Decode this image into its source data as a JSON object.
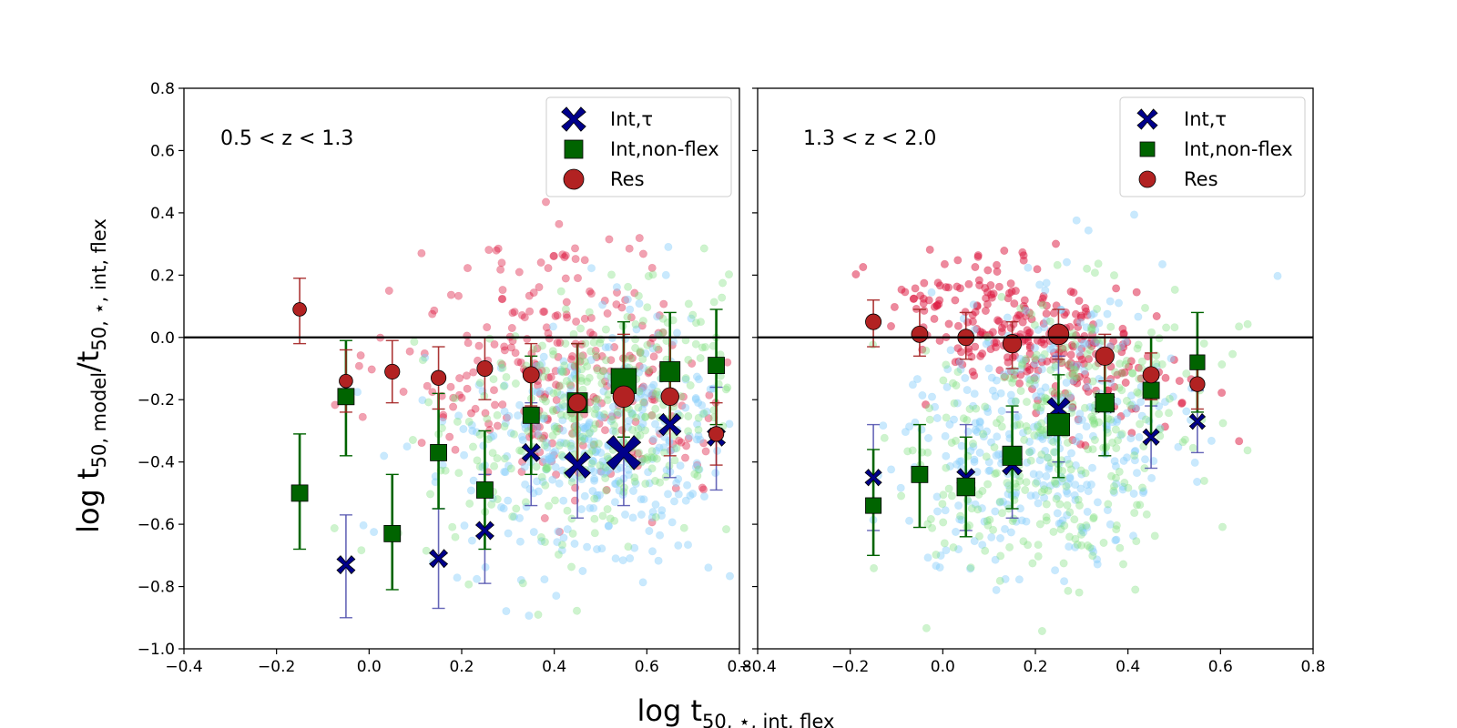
{
  "figure": {
    "ylabel": "log t50, model/t50, ⋆, int, flex",
    "xlabel": "log t50, ⋆, int, flex",
    "ylabel_parts": {
      "base": "log t",
      "sub1": "50, model",
      "slash": "/t",
      "sub2": "50, ⋆, int, flex"
    },
    "xlabel_parts": {
      "base": "log t",
      "sub": "50, ⋆, int, flex"
    }
  },
  "colors": {
    "tau_face": "#00008b",
    "tau_err": "#4b4bab",
    "nonflex_face": "#006400",
    "nonflex_err": "#006400",
    "res_face": "#b22222",
    "res_err": "#a31f1f",
    "scatter_red": "#dc143c",
    "scatter_blue": "#87cefa",
    "scatter_green": "#7ee07e"
  },
  "chart_data": [
    {
      "type": "scatter",
      "panel": "left",
      "annotation": "0.5 < z < 1.3",
      "xlim": [
        -0.4,
        0.8
      ],
      "ylim": [
        -1.0,
        0.8
      ],
      "xticks": [
        "−0.4",
        "−0.2",
        "0.0",
        "0.2",
        "0.4",
        "0.6",
        "0.8"
      ],
      "yticks": [
        "−1.0",
        "−0.8",
        "−0.6",
        "−0.4",
        "−0.2",
        "0.0",
        "0.2",
        "0.4",
        "0.6",
        "0.8"
      ],
      "hline": 0.0,
      "legend": {
        "placement": "top-right",
        "entries": [
          "Int,τ",
          "Int,non-flex",
          "Res"
        ]
      },
      "series": [
        {
          "name": "Int,τ",
          "marker": "X",
          "points": [
            {
              "x": -0.05,
              "y": -0.73,
              "lo": -0.9,
              "hi": -0.57,
              "w": 1
            },
            {
              "x": 0.15,
              "y": -0.71,
              "lo": -0.87,
              "hi": -0.55,
              "w": 1
            },
            {
              "x": 0.25,
              "y": -0.62,
              "lo": -0.79,
              "hi": -0.44,
              "w": 1
            },
            {
              "x": 0.35,
              "y": -0.37,
              "lo": -0.54,
              "hi": -0.21,
              "w": 1
            },
            {
              "x": 0.45,
              "y": -0.41,
              "lo": -0.58,
              "hi": -0.24,
              "w": 2
            },
            {
              "x": 0.55,
              "y": -0.37,
              "lo": -0.54,
              "hi": -0.2,
              "w": 3
            },
            {
              "x": 0.65,
              "y": -0.28,
              "lo": -0.45,
              "hi": -0.11,
              "w": 1.5
            },
            {
              "x": 0.75,
              "y": -0.32,
              "lo": -0.49,
              "hi": -0.16,
              "w": 1
            }
          ]
        },
        {
          "name": "Int,non-flex",
          "marker": "s",
          "points": [
            {
              "x": -0.15,
              "y": -0.5,
              "lo": -0.68,
              "hi": -0.31,
              "w": 1
            },
            {
              "x": -0.05,
              "y": -0.19,
              "lo": -0.38,
              "hi": -0.01,
              "w": 1
            },
            {
              "x": 0.05,
              "y": -0.63,
              "lo": -0.81,
              "hi": -0.44,
              "w": 1
            },
            {
              "x": 0.15,
              "y": -0.37,
              "lo": -0.55,
              "hi": -0.18,
              "w": 1
            },
            {
              "x": 0.25,
              "y": -0.49,
              "lo": -0.68,
              "hi": -0.3,
              "w": 1
            },
            {
              "x": 0.35,
              "y": -0.25,
              "lo": -0.44,
              "hi": -0.06,
              "w": 1
            },
            {
              "x": 0.45,
              "y": -0.21,
              "lo": -0.4,
              "hi": -0.02,
              "w": 1.5
            },
            {
              "x": 0.55,
              "y": -0.14,
              "lo": -0.32,
              "hi": 0.05,
              "w": 2.2
            },
            {
              "x": 0.65,
              "y": -0.11,
              "lo": -0.29,
              "hi": 0.08,
              "w": 1.5
            },
            {
              "x": 0.75,
              "y": -0.09,
              "lo": -0.28,
              "hi": 0.09,
              "w": 1
            }
          ]
        },
        {
          "name": "Res",
          "marker": "o",
          "points": [
            {
              "x": -0.15,
              "y": 0.09,
              "lo": -0.02,
              "hi": 0.19,
              "w": 0.6
            },
            {
              "x": -0.05,
              "y": -0.14,
              "lo": -0.24,
              "hi": -0.04,
              "w": 0.6
            },
            {
              "x": 0.05,
              "y": -0.11,
              "lo": -0.21,
              "hi": -0.01,
              "w": 0.8
            },
            {
              "x": 0.15,
              "y": -0.13,
              "lo": -0.23,
              "hi": -0.03,
              "w": 0.8
            },
            {
              "x": 0.25,
              "y": -0.1,
              "lo": -0.2,
              "hi": 0.0,
              "w": 0.9
            },
            {
              "x": 0.35,
              "y": -0.12,
              "lo": -0.22,
              "hi": -0.02,
              "w": 1
            },
            {
              "x": 0.45,
              "y": -0.21,
              "lo": -0.4,
              "hi": -0.02,
              "w": 1.2
            },
            {
              "x": 0.55,
              "y": -0.19,
              "lo": -0.38,
              "hi": 0.01,
              "w": 1.7
            },
            {
              "x": 0.65,
              "y": -0.19,
              "lo": -0.38,
              "hi": 0.0,
              "w": 1.2
            },
            {
              "x": 0.75,
              "y": -0.31,
              "lo": -0.41,
              "hi": -0.21,
              "w": 0.8
            }
          ]
        }
      ]
    },
    {
      "type": "scatter",
      "panel": "right",
      "annotation": "1.3 < z < 2.0",
      "xlim": [
        -0.4,
        0.8
      ],
      "ylim": [
        -1.0,
        0.8
      ],
      "xticks": [
        "−0.4",
        "−0.2",
        "0.0",
        "0.2",
        "0.4",
        "0.6",
        "0.8"
      ],
      "hline": 0.0,
      "legend": {
        "placement": "top-right",
        "entries": [
          "Int,τ",
          "Int,non-flex",
          "Res"
        ]
      },
      "series": [
        {
          "name": "Int,τ",
          "marker": "X",
          "points": [
            {
              "x": -0.15,
              "y": -0.45,
              "lo": -0.62,
              "hi": -0.28,
              "w": 0.8
            },
            {
              "x": 0.05,
              "y": -0.45,
              "lo": -0.62,
              "hi": -0.28,
              "w": 1
            },
            {
              "x": 0.15,
              "y": -0.41,
              "lo": -0.58,
              "hi": -0.24,
              "w": 1.2
            },
            {
              "x": 0.25,
              "y": -0.23,
              "lo": -0.4,
              "hi": -0.06,
              "w": 1.6
            },
            {
              "x": 0.35,
              "y": -0.21,
              "lo": -0.38,
              "hi": -0.04,
              "w": 1.2
            },
            {
              "x": 0.45,
              "y": -0.32,
              "lo": -0.42,
              "hi": -0.22,
              "w": 0.8
            },
            {
              "x": 0.55,
              "y": -0.27,
              "lo": -0.37,
              "hi": -0.17,
              "w": 0.7
            }
          ]
        },
        {
          "name": "Int,non-flex",
          "marker": "s",
          "points": [
            {
              "x": -0.15,
              "y": -0.54,
              "lo": -0.7,
              "hi": -0.36,
              "w": 0.9
            },
            {
              "x": -0.05,
              "y": -0.44,
              "lo": -0.61,
              "hi": -0.28,
              "w": 1
            },
            {
              "x": 0.05,
              "y": -0.48,
              "lo": -0.64,
              "hi": -0.32,
              "w": 1.2
            },
            {
              "x": 0.15,
              "y": -0.38,
              "lo": -0.55,
              "hi": -0.22,
              "w": 1.4
            },
            {
              "x": 0.25,
              "y": -0.28,
              "lo": -0.45,
              "hi": -0.12,
              "w": 1.8
            },
            {
              "x": 0.35,
              "y": -0.21,
              "lo": -0.38,
              "hi": -0.05,
              "w": 1.3
            },
            {
              "x": 0.45,
              "y": -0.17,
              "lo": -0.33,
              "hi": 0.0,
              "w": 1
            },
            {
              "x": 0.55,
              "y": -0.08,
              "lo": -0.24,
              "hi": 0.08,
              "w": 0.8
            }
          ]
        },
        {
          "name": "Res",
          "marker": "o",
          "points": [
            {
              "x": -0.15,
              "y": 0.05,
              "lo": -0.03,
              "hi": 0.12,
              "w": 0.9
            },
            {
              "x": -0.05,
              "y": 0.01,
              "lo": -0.06,
              "hi": 0.09,
              "w": 1
            },
            {
              "x": 0.05,
              "y": 0.0,
              "lo": -0.07,
              "hi": 0.08,
              "w": 1
            },
            {
              "x": 0.15,
              "y": -0.02,
              "lo": -0.1,
              "hi": 0.05,
              "w": 1.3
            },
            {
              "x": 0.25,
              "y": 0.01,
              "lo": -0.07,
              "hi": 0.09,
              "w": 1.6
            },
            {
              "x": 0.35,
              "y": -0.06,
              "lo": -0.14,
              "hi": 0.01,
              "w": 1.3
            },
            {
              "x": 0.45,
              "y": -0.12,
              "lo": -0.2,
              "hi": -0.05,
              "w": 1
            },
            {
              "x": 0.55,
              "y": -0.15,
              "lo": -0.23,
              "hi": -0.08,
              "w": 0.8
            }
          ]
        }
      ]
    }
  ]
}
